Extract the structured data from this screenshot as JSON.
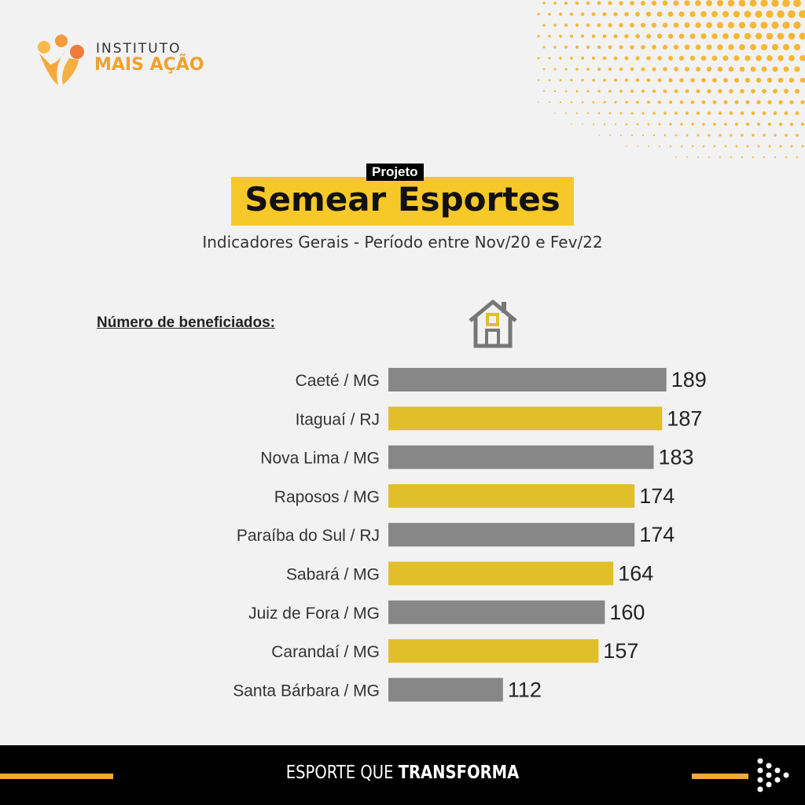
{
  "logo": {
    "line1": "INSTITUTO",
    "line2": "MAIS AÇÃO"
  },
  "header": {
    "tag": "Projeto",
    "title": "Semear Esportes",
    "subtitle": "Indicadores Gerais - Período entre Nov/20 e Fev/22"
  },
  "section_label": "Número de beneficiados:",
  "icon": "house-icon",
  "colors": {
    "gray": "#878787",
    "yellow": "#e0bf2a",
    "orange": "#f5a833"
  },
  "chart_data": {
    "type": "bar",
    "orientation": "horizontal",
    "categories": [
      "Caeté / MG",
      "Itaguaí / RJ",
      "Nova Lima / MG",
      "Raposos / MG",
      "Paraíba do Sul / RJ",
      "Sabará / MG",
      "Juiz de Fora / MG",
      "Carandaí / MG",
      "Santa Bárbara / MG"
    ],
    "values": [
      189,
      187,
      183,
      174,
      174,
      164,
      160,
      157,
      112
    ],
    "bar_colors": [
      "#878787",
      "#e0bf2a",
      "#878787",
      "#e0bf2a",
      "#878787",
      "#e0bf2a",
      "#878787",
      "#e0bf2a",
      "#878787"
    ],
    "grid": false
  },
  "footer": {
    "text_regular": "ESPORTE QUE ",
    "text_bold": "TRANSFORMA",
    "icon": "arrow-dots-icon"
  }
}
